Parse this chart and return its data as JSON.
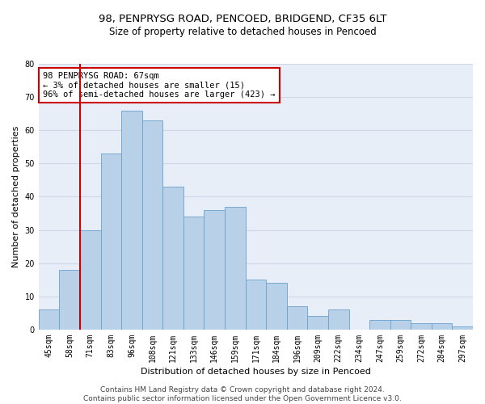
{
  "title_line1": "98, PENPRYSG ROAD, PENCOED, BRIDGEND, CF35 6LT",
  "title_line2": "Size of property relative to detached houses in Pencoed",
  "xlabel": "Distribution of detached houses by size in Pencoed",
  "ylabel": "Number of detached properties",
  "categories": [
    "45sqm",
    "58sqm",
    "71sqm",
    "83sqm",
    "96sqm",
    "108sqm",
    "121sqm",
    "133sqm",
    "146sqm",
    "159sqm",
    "171sqm",
    "184sqm",
    "196sqm",
    "209sqm",
    "222sqm",
    "234sqm",
    "247sqm",
    "259sqm",
    "272sqm",
    "284sqm",
    "297sqm"
  ],
  "values": [
    6,
    18,
    30,
    53,
    66,
    63,
    43,
    34,
    36,
    37,
    15,
    14,
    7,
    4,
    6,
    0,
    3,
    3,
    2,
    2,
    1
  ],
  "bar_color": "#b8d0e8",
  "bar_edge_color": "#6aa0cc",
  "vline_color": "#cc0000",
  "annotation_text": "98 PENPRYSG ROAD: 67sqm\n← 3% of detached houses are smaller (15)\n96% of semi-detached houses are larger (423) →",
  "annotation_box_color": "white",
  "annotation_box_edge_color": "#cc0000",
  "ylim": [
    0,
    80
  ],
  "yticks": [
    0,
    10,
    20,
    30,
    40,
    50,
    60,
    70,
    80
  ],
  "grid_color": "#d0d8e8",
  "background_color": "#e8eef8",
  "footer_text": "Contains HM Land Registry data © Crown copyright and database right 2024.\nContains public sector information licensed under the Open Government Licence v3.0.",
  "title_fontsize": 9.5,
  "subtitle_fontsize": 8.5,
  "axis_label_fontsize": 8,
  "tick_fontsize": 7,
  "annotation_fontsize": 7.5,
  "footer_fontsize": 6.5
}
